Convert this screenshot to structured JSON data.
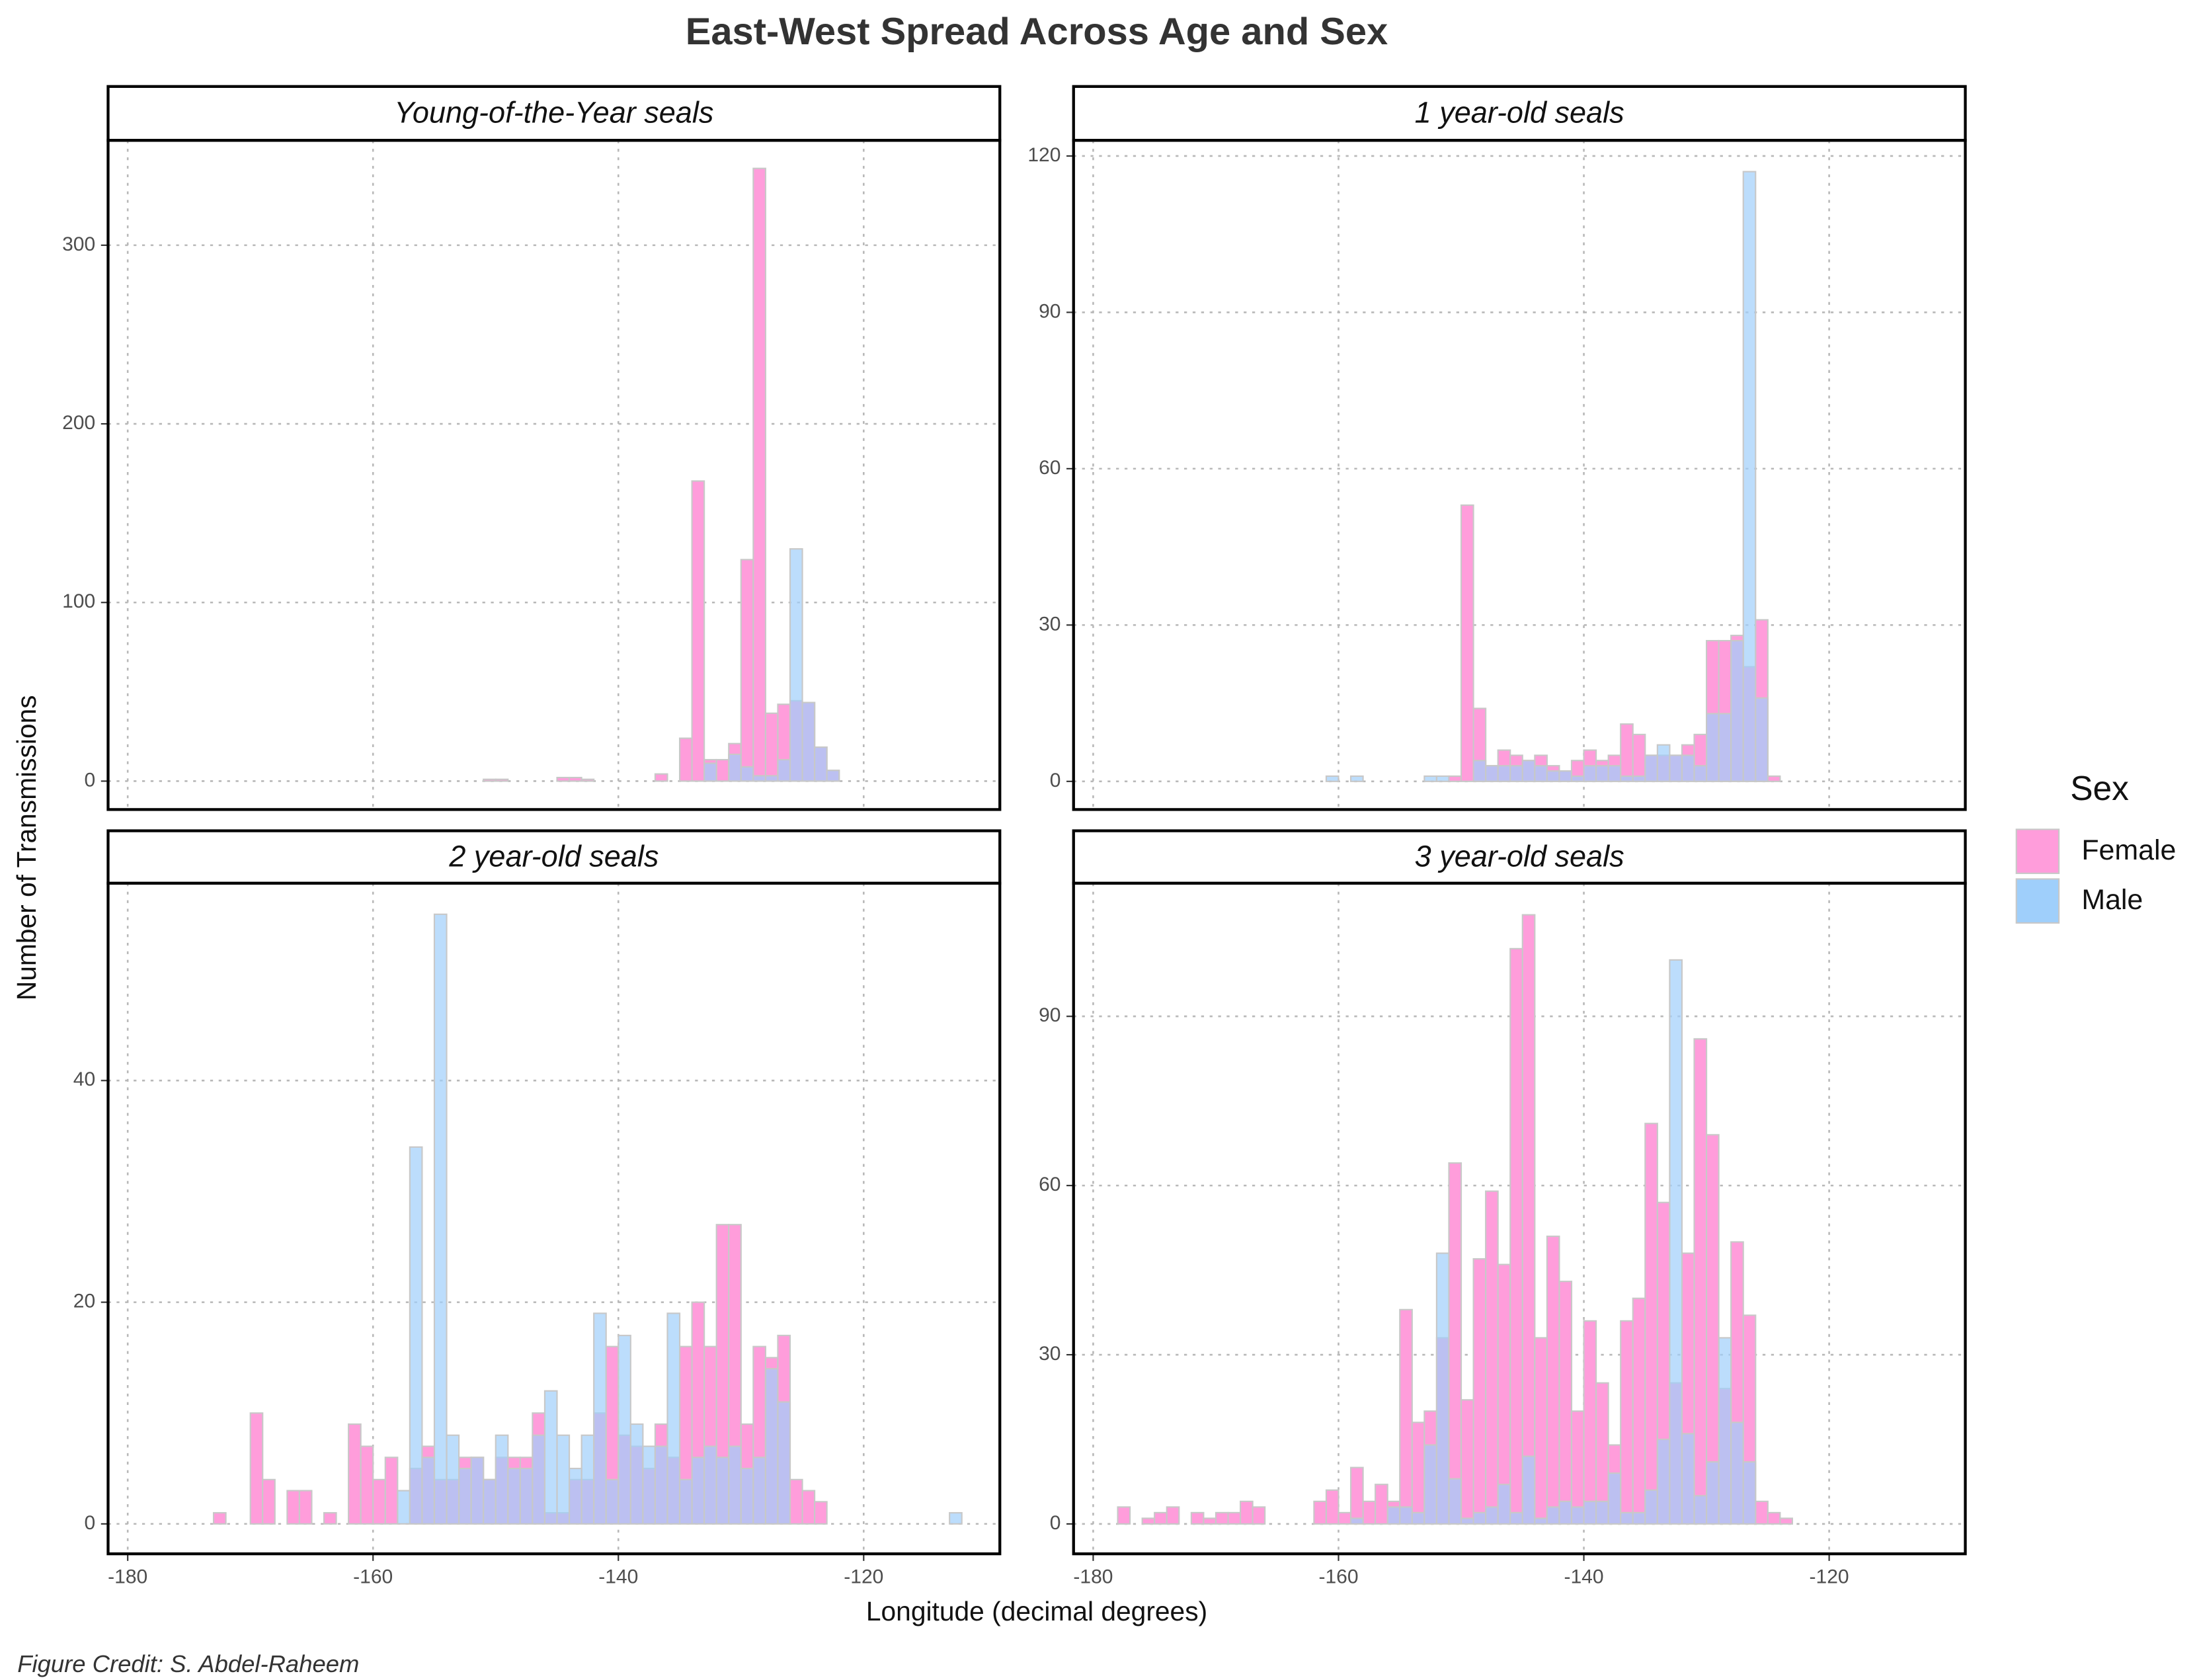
{
  "title": "East-West Spread Across Age and Sex",
  "x_label": "Longitude (decimal degrees)",
  "y_label": "Number of Transmissions",
  "legend_title": "Sex",
  "caption": "Figure Credit: S. Abdel-Raheem",
  "chart_data": [
    {
      "type": "histogram",
      "title": "Young-of-the-Year seals",
      "bins": [
        -178,
        -177,
        -176,
        -175,
        -174,
        -173,
        -172,
        -171,
        -170,
        -169,
        -168,
        -167,
        -166,
        -165,
        -164,
        -163,
        -162,
        -161,
        -160,
        -159,
        -158,
        -157,
        -156,
        -155,
        -154,
        -153,
        -152,
        -151,
        -150,
        -149,
        -148,
        -147,
        -146,
        -145,
        -144,
        -143,
        -142,
        -141,
        -140,
        -139,
        -138,
        -137,
        -136,
        -135,
        -134,
        -133,
        -132,
        -131,
        -130,
        -129,
        -128,
        -127,
        -126,
        -125,
        -124,
        -123,
        -122,
        -121,
        -120,
        -119,
        -118,
        -117,
        -116,
        -115,
        -114,
        -113,
        -112
      ],
      "series": [
        {
          "name": "Female",
          "color": "#ff9ddb",
          "values": [
            0,
            0,
            0,
            0,
            0,
            0,
            0,
            0,
            0,
            0,
            0,
            0,
            0,
            0,
            0,
            0,
            0,
            0,
            0,
            0,
            0,
            0,
            0,
            0,
            0,
            0,
            0,
            1,
            1,
            0,
            0,
            0,
            0,
            2,
            2,
            1,
            0,
            0,
            0,
            0,
            0,
            4,
            0,
            24,
            168,
            12,
            12,
            21,
            124,
            343,
            38,
            43,
            45,
            44,
            19,
            6,
            0,
            0,
            0,
            0,
            0,
            0,
            0,
            0,
            0,
            0
          ]
        },
        {
          "name": "Male",
          "color": "#9fcffb",
          "values": [
            0,
            0,
            0,
            0,
            0,
            0,
            0,
            0,
            0,
            0,
            0,
            0,
            0,
            0,
            0,
            0,
            0,
            0,
            0,
            0,
            0,
            0,
            0,
            0,
            0,
            0,
            0,
            0,
            0,
            0,
            0,
            0,
            0,
            0,
            0,
            0,
            0,
            0,
            0,
            0,
            0,
            0,
            0,
            0,
            0,
            10,
            0,
            15,
            8,
            3,
            3,
            12,
            130,
            44,
            19,
            6,
            0,
            0,
            0,
            0,
            0,
            0,
            0,
            0,
            0,
            0
          ]
        }
      ],
      "xlim": [
        -181.6,
        -108.9
      ],
      "xticks": [
        -180,
        -160,
        -140,
        -120
      ],
      "ylim": [
        -15.9,
        358.7
      ],
      "yticks": [
        0,
        100,
        200,
        300
      ],
      "grid": true
    },
    {
      "type": "histogram",
      "title": "1 year-old seals",
      "bins": [
        -178,
        -177,
        -176,
        -175,
        -174,
        -173,
        -172,
        -171,
        -170,
        -169,
        -168,
        -167,
        -166,
        -165,
        -164,
        -163,
        -162,
        -161,
        -160,
        -159,
        -158,
        -157,
        -156,
        -155,
        -154,
        -153,
        -152,
        -151,
        -150,
        -149,
        -148,
        -147,
        -146,
        -145,
        -144,
        -143,
        -142,
        -141,
        -140,
        -139,
        -138,
        -137,
        -136,
        -135,
        -134,
        -133,
        -132,
        -131,
        -130,
        -129,
        -128,
        -127,
        -126,
        -125,
        -124,
        -123,
        -122,
        -121,
        -120,
        -119,
        -118,
        -117,
        -116,
        -115,
        -114,
        -113,
        -112
      ],
      "series": [
        {
          "name": "Female",
          "color": "#ff9ddb",
          "values": [
            0,
            0,
            0,
            0,
            0,
            0,
            0,
            0,
            0,
            0,
            0,
            0,
            0,
            0,
            0,
            0,
            0,
            0,
            0,
            0,
            0,
            0,
            0,
            0,
            0,
            0,
            0,
            1,
            53,
            14,
            3,
            6,
            5,
            4,
            5,
            3,
            2,
            4,
            6,
            4,
            5,
            11,
            9,
            5,
            5,
            5,
            7,
            9,
            27,
            27,
            28,
            22,
            31,
            1,
            0,
            0,
            0,
            0,
            0,
            0,
            0,
            0,
            0,
            0,
            0,
            0
          ]
        },
        {
          "name": "Male",
          "color": "#9fcffb",
          "values": [
            0,
            0,
            0,
            0,
            0,
            0,
            0,
            0,
            0,
            0,
            0,
            0,
            0,
            0,
            0,
            0,
            0,
            1,
            0,
            1,
            0,
            0,
            0,
            0,
            0,
            1,
            1,
            0,
            0,
            4,
            3,
            3,
            3,
            4,
            3,
            2,
            2,
            1,
            3,
            3,
            3,
            1,
            1,
            5,
            7,
            5,
            5,
            3,
            13,
            13,
            27,
            117,
            16,
            0,
            0,
            0,
            0,
            0,
            0,
            0,
            0,
            0,
            0,
            0,
            0,
            0
          ]
        }
      ],
      "xlim": [
        -181.6,
        -108.9
      ],
      "xticks": [
        -180,
        -160,
        -140,
        -120
      ],
      "ylim": [
        -5.4,
        123
      ],
      "yticks": [
        0,
        30,
        60,
        90,
        120
      ],
      "grid": true
    },
    {
      "type": "histogram",
      "title": "2 year-old seals",
      "bins": [
        -178,
        -177,
        -176,
        -175,
        -174,
        -173,
        -172,
        -171,
        -170,
        -169,
        -168,
        -167,
        -166,
        -165,
        -164,
        -163,
        -162,
        -161,
        -160,
        -159,
        -158,
        -157,
        -156,
        -155,
        -154,
        -153,
        -152,
        -151,
        -150,
        -149,
        -148,
        -147,
        -146,
        -145,
        -144,
        -143,
        -142,
        -141,
        -140,
        -139,
        -138,
        -137,
        -136,
        -135,
        -134,
        -133,
        -132,
        -131,
        -130,
        -129,
        -128,
        -127,
        -126,
        -125,
        -124,
        -123,
        -122,
        -121,
        -120,
        -119,
        -118,
        -117,
        -116,
        -115,
        -114,
        -113,
        -112
      ],
      "series": [
        {
          "name": "Female",
          "color": "#ff9ddb",
          "values": [
            0,
            0,
            0,
            0,
            0,
            1,
            0,
            0,
            10,
            4,
            0,
            3,
            3,
            0,
            1,
            0,
            9,
            7,
            4,
            6,
            0,
            5,
            7,
            4,
            4,
            6,
            6,
            4,
            6,
            6,
            6,
            10,
            1,
            1,
            4,
            4,
            10,
            16,
            8,
            7,
            5,
            9,
            6,
            16,
            20,
            16,
            27,
            27,
            9,
            16,
            15,
            17,
            4,
            3,
            2,
            0,
            0,
            0,
            0,
            0,
            0,
            0,
            0,
            0,
            0,
            0
          ]
        },
        {
          "name": "Male",
          "color": "#9fcffb",
          "values": [
            0,
            0,
            0,
            0,
            0,
            0,
            0,
            0,
            0,
            0,
            0,
            0,
            0,
            0,
            0,
            0,
            0,
            0,
            0,
            0,
            3,
            34,
            6,
            55,
            8,
            5,
            6,
            4,
            8,
            5,
            5,
            8,
            12,
            8,
            5,
            8,
            19,
            4,
            17,
            9,
            7,
            7,
            19,
            4,
            6,
            7,
            6,
            7,
            5,
            6,
            14,
            11,
            0,
            0,
            0,
            0,
            0,
            0,
            0,
            0,
            0,
            0,
            0,
            0,
            0,
            1
          ]
        }
      ],
      "xlim": [
        -181.6,
        -108.9
      ],
      "xticks": [
        -180,
        -160,
        -140,
        -120
      ],
      "ylim": [
        -2.7,
        57.8
      ],
      "yticks": [
        0,
        20,
        40
      ],
      "grid": true
    },
    {
      "type": "histogram",
      "title": "3 year-old seals",
      "bins": [
        -178,
        -177,
        -176,
        -175,
        -174,
        -173,
        -172,
        -171,
        -170,
        -169,
        -168,
        -167,
        -166,
        -165,
        -164,
        -163,
        -162,
        -161,
        -160,
        -159,
        -158,
        -157,
        -156,
        -155,
        -154,
        -153,
        -152,
        -151,
        -150,
        -149,
        -148,
        -147,
        -146,
        -145,
        -144,
        -143,
        -142,
        -141,
        -140,
        -139,
        -138,
        -137,
        -136,
        -135,
        -134,
        -133,
        -132,
        -131,
        -130,
        -129,
        -128,
        -127,
        -126,
        -125,
        -124,
        -123,
        -122,
        -121,
        -120,
        -119,
        -118,
        -117,
        -116,
        -115,
        -114,
        -113,
        -112
      ],
      "series": [
        {
          "name": "Female",
          "color": "#ff9ddb",
          "values": [
            3,
            0,
            1,
            2,
            3,
            0,
            2,
            1,
            2,
            2,
            4,
            3,
            0,
            0,
            0,
            0,
            4,
            6,
            2,
            10,
            4,
            7,
            4,
            38,
            18,
            20,
            33,
            64,
            22,
            47,
            59,
            46,
            102,
            108,
            33,
            51,
            43,
            20,
            36,
            25,
            14,
            36,
            40,
            71,
            57,
            25,
            48,
            86,
            69,
            24,
            50,
            37,
            4,
            2,
            1,
            0,
            0,
            0,
            0,
            0,
            0,
            0,
            0,
            0,
            0,
            0
          ]
        },
        {
          "name": "Male",
          "color": "#9fcffb",
          "values": [
            0,
            0,
            0,
            0,
            0,
            0,
            0,
            0,
            0,
            0,
            0,
            0,
            0,
            0,
            0,
            0,
            0,
            0,
            0,
            1,
            0,
            0,
            3,
            3,
            2,
            14,
            48,
            8,
            1,
            2,
            3,
            7,
            2,
            12,
            1,
            3,
            4,
            3,
            4,
            4,
            9,
            2,
            2,
            6,
            15,
            100,
            16,
            5,
            11,
            33,
            18,
            11,
            0,
            0,
            0,
            0,
            0,
            0,
            0,
            0,
            0,
            0,
            0,
            0,
            0,
            0
          ]
        }
      ],
      "xlim": [
        -181.6,
        -108.9
      ],
      "xticks": [
        -180,
        -160,
        -140,
        -120
      ],
      "ylim": [
        -5.3,
        113.6
      ],
      "yticks": [
        0,
        30,
        60,
        90
      ],
      "grid": true
    }
  ]
}
